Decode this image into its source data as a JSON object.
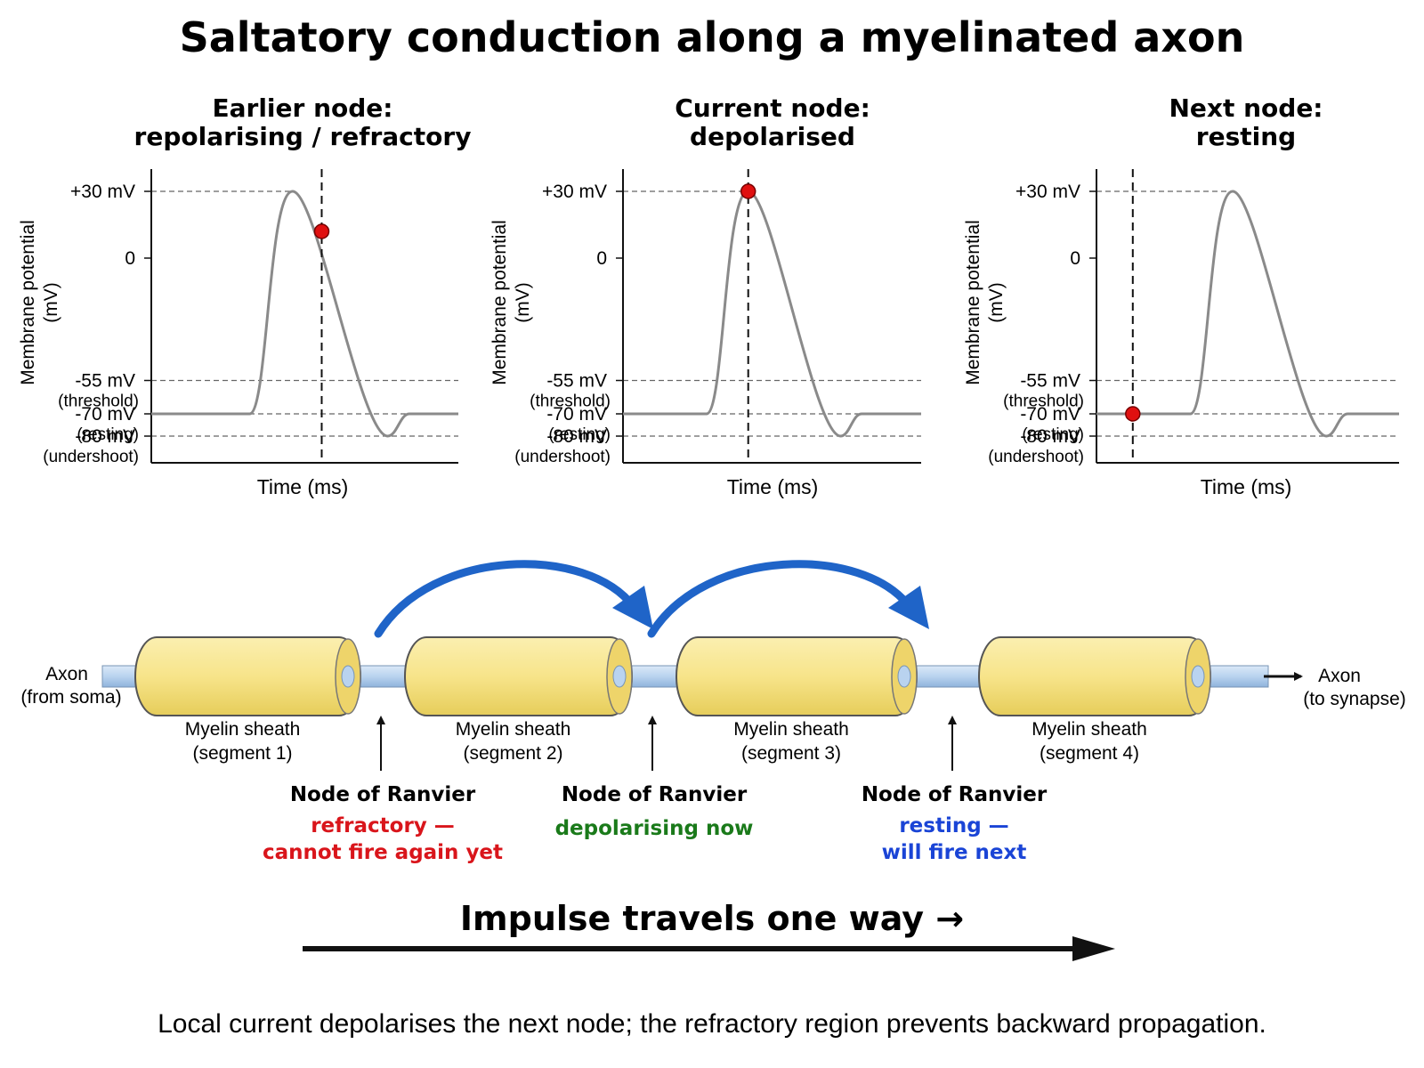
{
  "title": "Saltatory conduction along a myelinated axon",
  "graphs": [
    {
      "title_line1": "Earlier node:",
      "title_line2": "repolarising / refractory",
      "marker_label": "marker on curve",
      "marker_time_fraction": 0.41,
      "marker_value_mV": 12
    },
    {
      "title_line1": "Current node:",
      "title_line2": "depolarised",
      "marker_value_mV": 30,
      "marker_time_fraction": 0.32
    },
    {
      "title_line1": "Next node:",
      "title_line2": "resting",
      "marker_value_mV": -70,
      "marker_time_fraction": 0.1
    }
  ],
  "graph_axis": {
    "y_label_line1": "Membrane potential",
    "y_label_line2": "(mV)",
    "x_label": "Time (ms)",
    "ticks": [
      {
        "value": 30,
        "label": "+30 mV",
        "sub": ""
      },
      {
        "value": 0,
        "label": "0",
        "sub": ""
      },
      {
        "value": -55,
        "label": "-55 mV",
        "sub": "(threshold)"
      },
      {
        "value": -70,
        "label": "-70 mV",
        "sub": "(resting)"
      },
      {
        "value": -80,
        "label": "-80 mV",
        "sub": "(undershoot)"
      }
    ]
  },
  "axon": {
    "left_label_line1": "Axon",
    "left_label_line2": "(from soma)",
    "right_label_line1": "Axon",
    "right_label_line2": "(to synapse)",
    "segments": [
      {
        "line1": "Myelin sheath",
        "line2": "(segment 1)"
      },
      {
        "line1": "Myelin sheath",
        "line2": "(segment 2)"
      },
      {
        "line1": "Myelin sheath",
        "line2": "(segment 3)"
      },
      {
        "line1": "Myelin sheath",
        "line2": "(segment 4)"
      }
    ],
    "nodes": [
      {
        "label": "Node of Ranvier",
        "status_line1": "refractory —",
        "status_line2": "cannot fire again yet",
        "color": "#d9151b"
      },
      {
        "label": "Node of Ranvier",
        "status_line1": "depolarising now",
        "status_line2": "",
        "color": "#1a7a1a"
      },
      {
        "label": "Node of Ranvier",
        "status_line1": "resting —",
        "status_line2": "will fire next",
        "color": "#1a44d6"
      }
    ]
  },
  "direction_label": "Impulse travels one way →",
  "caption": "Local current depolarises the next node; the refractory region prevents backward propagation.",
  "colors": {
    "myelin_fill": "#f7e48a",
    "myelin_stroke": "#555555",
    "axon_fill": "#b9d3ef",
    "jump_arrow": "#1f64c8",
    "curve": "#8a8a8a",
    "marker": "#e01010"
  }
}
